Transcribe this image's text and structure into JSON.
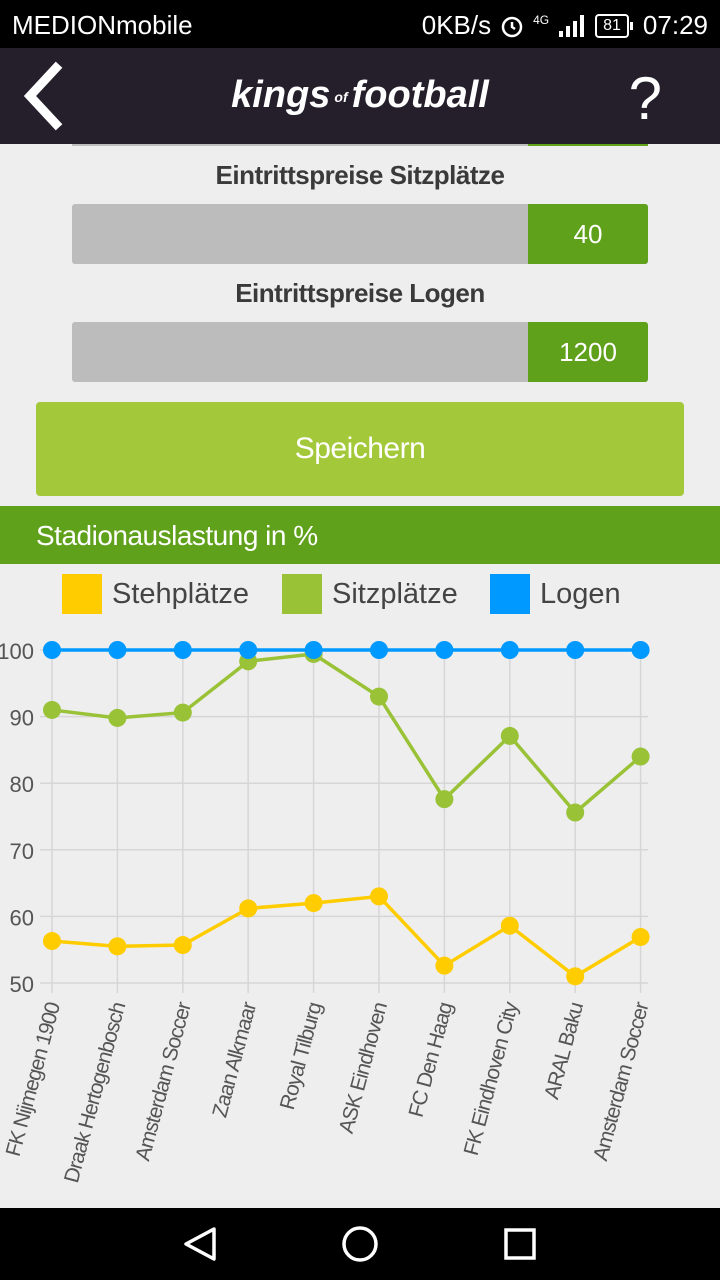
{
  "status_bar": {
    "carrier": "MEDIONmobile",
    "speed": "0KB/s",
    "network": "4G",
    "battery": "81",
    "time": "07:29"
  },
  "app_bar": {
    "logo_word1": "kings",
    "logo_of": "of",
    "logo_word2": "football",
    "help": "?"
  },
  "settings": {
    "seats_label": "Eintrittspreise Sitzplätze",
    "seats_value": "40",
    "boxes_label": "Eintrittspreise Logen",
    "boxes_value": "1200",
    "save_label": "Speichern"
  },
  "section_title": "Stadionauslastung in %",
  "colors": {
    "brand_green": "#5fa11b",
    "button_green": "#a3c93a",
    "stehplaetze": "#ffcc00",
    "sitzplaetze": "#99c237",
    "logen": "#0099ff"
  },
  "chart_data": {
    "type": "line",
    "title": "Stadionauslastung in %",
    "xlabel": "",
    "ylabel": "",
    "ylim": [
      50,
      100
    ],
    "yticks": [
      50,
      60,
      70,
      80,
      90,
      100
    ],
    "grid": true,
    "legend_position": "top",
    "categories": [
      "FK Nijmegen 1900",
      "Draak Hertogenbosch",
      "Amsterdam Soccer",
      "Zaan Alkmaar",
      "Royal Tilburg",
      "ASK Eindhoven",
      "FC Den Haag",
      "FK Eindhoven City",
      "ARAL Baku",
      "Amsterdam Soccer"
    ],
    "series": [
      {
        "name": "Stehplätze",
        "color": "#ffcc00",
        "values": [
          56.3,
          55.5,
          55.7,
          61.2,
          62.0,
          63.0,
          52.6,
          58.6,
          51.0,
          56.9
        ]
      },
      {
        "name": "Sitzplätze",
        "color": "#99c237",
        "values": [
          91.0,
          89.8,
          90.6,
          98.3,
          99.4,
          93.0,
          77.6,
          87.1,
          75.6,
          84.0
        ]
      },
      {
        "name": "Logen",
        "color": "#0099ff",
        "values": [
          100,
          100,
          100,
          100,
          100,
          100,
          100,
          100,
          100,
          100
        ]
      }
    ]
  }
}
